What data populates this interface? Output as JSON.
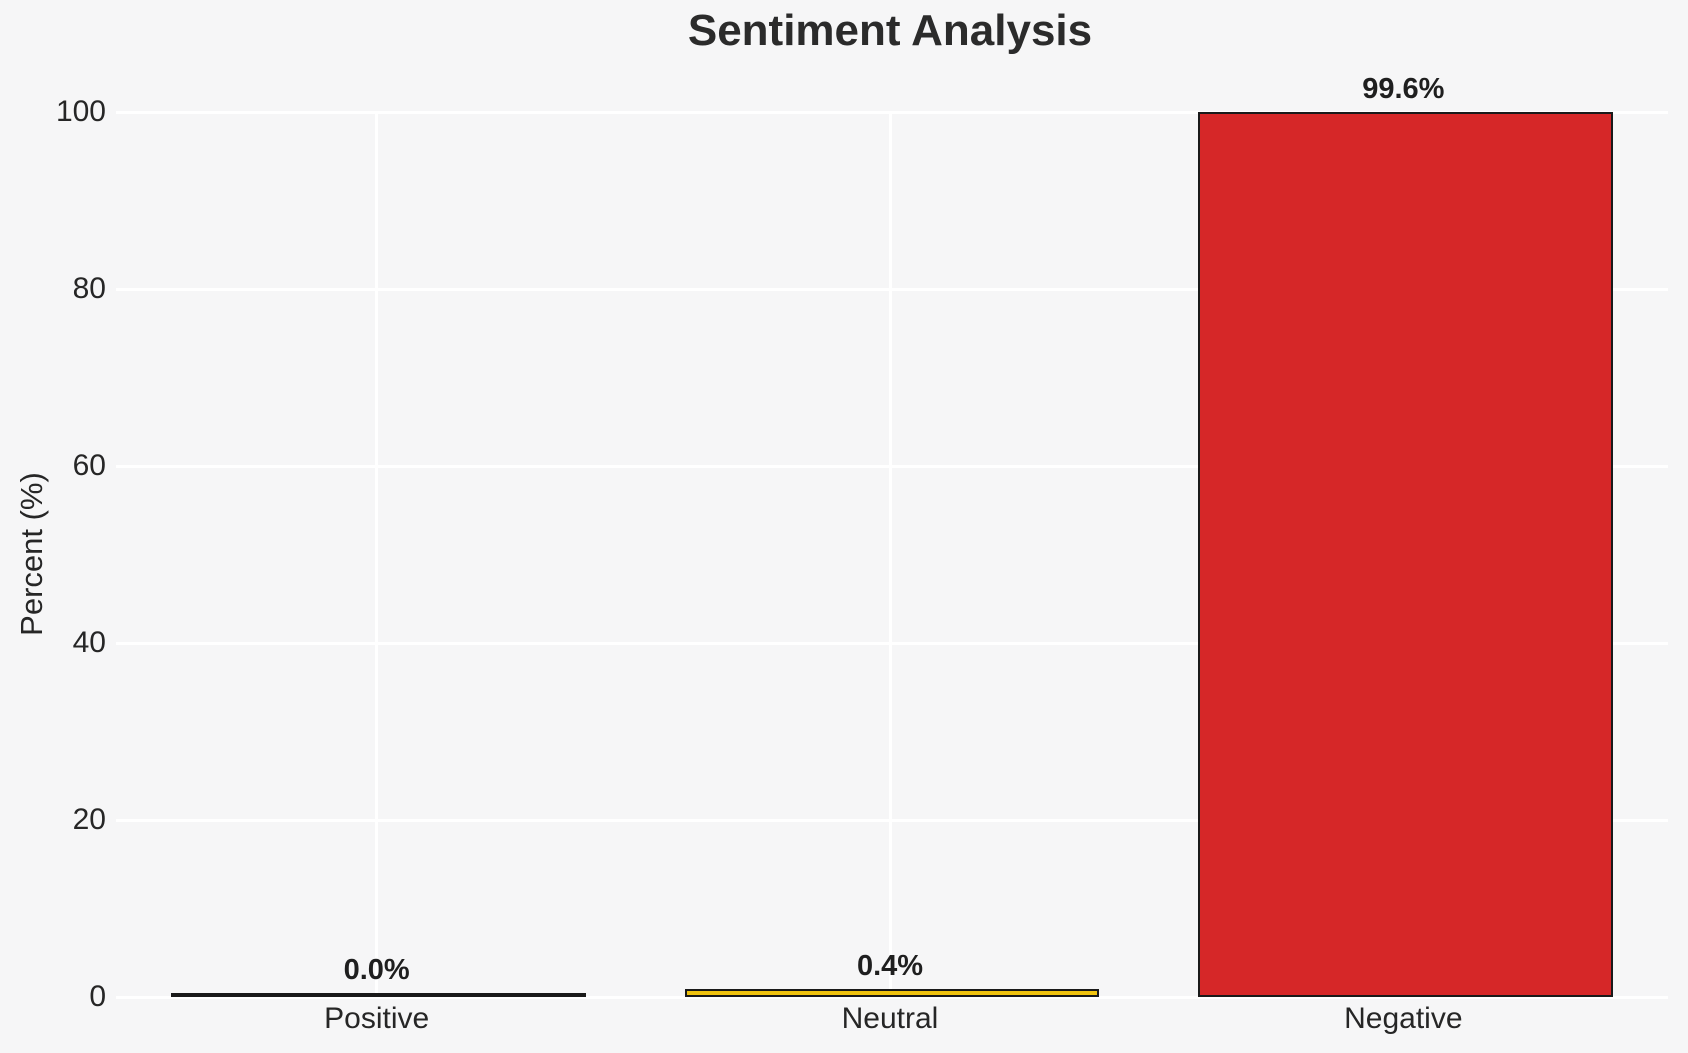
{
  "chart_data": {
    "type": "bar",
    "title": "Sentiment Analysis",
    "ylabel": "Percent (%)",
    "xlabel": "",
    "categories": [
      "Positive",
      "Neutral",
      "Negative"
    ],
    "values": [
      0.0,
      0.4,
      99.6
    ],
    "value_labels": [
      "0.0%",
      "0.4%",
      "99.6%"
    ],
    "yticks": [
      0,
      20,
      40,
      60,
      80,
      100
    ],
    "ylim": [
      0,
      100
    ],
    "bar_width_fraction": 0.8,
    "grid": "white gridlines, horizontal at y ticks and vertical at category centers",
    "legend": "none",
    "colors": {
      "background": "#f6f6f7",
      "gridline": "#ffffff",
      "text": "#262626",
      "bar_edge": "#1a1a1a",
      "bars": [
        "#2ca02c",
        "#f1c40f",
        "#d62728"
      ]
    }
  }
}
